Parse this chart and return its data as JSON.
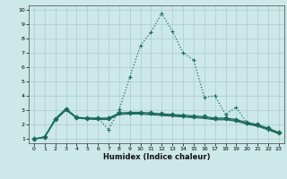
{
  "xlabel": "Humidex (Indice chaleur)",
  "background_color": "#cce8e8",
  "grid_color": "#aacccc",
  "line_color": "#1a6b5a",
  "xlim_min": -0.5,
  "xlim_max": 23.5,
  "ylim_min": 0.7,
  "ylim_max": 10.3,
  "xticks": [
    0,
    1,
    2,
    3,
    4,
    5,
    6,
    7,
    8,
    9,
    10,
    11,
    12,
    13,
    14,
    15,
    16,
    17,
    18,
    19,
    20,
    21,
    22,
    23
  ],
  "yticks": [
    1,
    2,
    3,
    4,
    5,
    6,
    7,
    8,
    9,
    10
  ],
  "series": [
    {
      "x": [
        0,
        1,
        2,
        3,
        4,
        5,
        6,
        7,
        8,
        9,
        10,
        11,
        12,
        13,
        14,
        15,
        16,
        17,
        18,
        19,
        20,
        21,
        22,
        23
      ],
      "y": [
        1.0,
        1.15,
        2.4,
        3.1,
        2.5,
        2.45,
        2.45,
        1.65,
        3.05,
        5.3,
        7.5,
        8.45,
        9.75,
        8.5,
        7.0,
        6.5,
        3.9,
        4.0,
        2.7,
        3.2,
        2.1,
        1.95,
        1.65,
        1.45
      ],
      "linestyle": "dotted",
      "marker": "+",
      "markersize": 3.5,
      "linewidth": 0.9
    },
    {
      "x": [
        0,
        1,
        2,
        3,
        4,
        5,
        6,
        7,
        8,
        9,
        10,
        11,
        12,
        13,
        14,
        15,
        16,
        17,
        18,
        19,
        20,
        21,
        22,
        23
      ],
      "y": [
        1.0,
        1.15,
        2.4,
        3.1,
        2.5,
        2.45,
        2.45,
        2.45,
        2.8,
        2.85,
        2.85,
        2.8,
        2.75,
        2.7,
        2.65,
        2.6,
        2.55,
        2.45,
        2.45,
        2.35,
        2.15,
        2.0,
        1.75,
        1.45
      ],
      "linestyle": "solid",
      "marker": "D",
      "markersize": 2.5,
      "linewidth": 0.9
    },
    {
      "x": [
        0,
        1,
        2,
        3,
        4,
        5,
        6,
        7,
        8,
        9,
        10,
        11,
        12,
        13,
        14,
        15,
        16,
        17,
        18,
        19,
        20,
        21,
        22,
        23
      ],
      "y": [
        1.0,
        1.12,
        2.35,
        3.05,
        2.48,
        2.42,
        2.4,
        2.4,
        2.75,
        2.78,
        2.78,
        2.73,
        2.68,
        2.63,
        2.58,
        2.53,
        2.48,
        2.38,
        2.38,
        2.28,
        2.08,
        1.93,
        1.68,
        1.4
      ],
      "linestyle": "solid",
      "marker": null,
      "markersize": 0,
      "linewidth": 0.8
    },
    {
      "x": [
        0,
        1,
        2,
        3,
        4,
        5,
        6,
        7,
        8,
        9,
        10,
        11,
        12,
        13,
        14,
        15,
        16,
        17,
        18,
        19,
        20,
        21,
        22,
        23
      ],
      "y": [
        1.0,
        1.1,
        2.3,
        3.0,
        2.45,
        2.38,
        2.35,
        2.35,
        2.7,
        2.73,
        2.73,
        2.68,
        2.63,
        2.58,
        2.53,
        2.48,
        2.43,
        2.33,
        2.33,
        2.23,
        2.03,
        1.88,
        1.63,
        1.35
      ],
      "linestyle": "solid",
      "marker": null,
      "markersize": 0,
      "linewidth": 0.8
    }
  ]
}
